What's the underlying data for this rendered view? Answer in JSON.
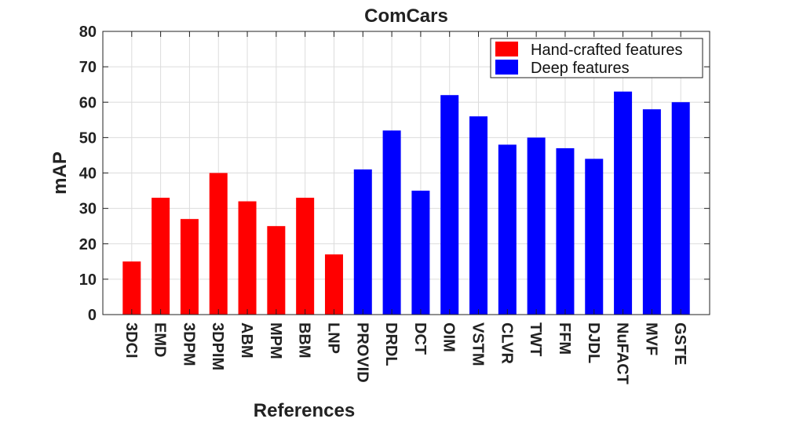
{
  "chart_data": {
    "type": "bar",
    "title": "ComCars",
    "xlabel": "References",
    "ylabel": "mAP",
    "ylim": [
      0,
      80
    ],
    "yticks": [
      0,
      10,
      20,
      30,
      40,
      50,
      60,
      70,
      80
    ],
    "grid": true,
    "legend_position": "top-right",
    "categories": [
      "3DCI",
      "EMD",
      "3DPM",
      "3DPIM",
      "ABM",
      "MPM",
      "BBM",
      "LNP",
      "PROVID",
      "DRDL",
      "DCT",
      "OIM",
      "VSTM",
      "CLVR",
      "TWT",
      "FFM",
      "DJDL",
      "NuFACT",
      "MVF",
      "GSTE"
    ],
    "series": [
      {
        "name": "Hand-crafted features",
        "color": "#ff0000",
        "values": [
          15,
          33,
          27,
          40,
          32,
          25,
          33,
          17,
          null,
          null,
          null,
          null,
          null,
          null,
          null,
          null,
          null,
          null,
          null,
          null
        ]
      },
      {
        "name": "Deep features",
        "color": "#0000ff",
        "values": [
          null,
          null,
          null,
          null,
          null,
          null,
          null,
          null,
          41,
          52,
          35,
          62,
          56,
          48,
          50,
          47,
          44,
          63,
          58,
          60
        ]
      }
    ]
  }
}
